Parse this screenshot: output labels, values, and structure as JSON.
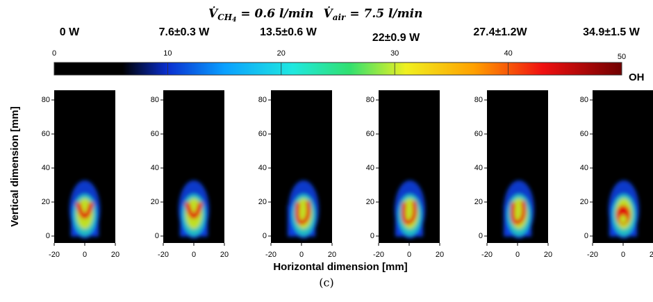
{
  "title": {
    "symbol_1": "V̇",
    "sub_1": "CH",
    "subsub_1": "4",
    "rest_1": "= 0.6 l/min",
    "symbol_2": "V̇",
    "sub_2": "air",
    "rest_2": "= 7.5  l/min"
  },
  "panels": [
    {
      "label": "0 W"
    },
    {
      "label": "7.6±0.3 W"
    },
    {
      "label": "13.5±0.6 W"
    },
    {
      "label": "22±0.9 W"
    },
    {
      "label": "27.4±1.2W"
    },
    {
      "label": "34.9±1.5 W"
    }
  ],
  "colorbar": {
    "ticks": [
      0,
      10,
      20,
      30,
      40,
      50
    ],
    "label": "OH"
  },
  "y_axis": {
    "label": "Vertical dimension [mm]",
    "ticks": [
      0,
      20,
      40,
      60,
      80
    ]
  },
  "x_axis": {
    "label": "Horizontal dimension [mm]",
    "ticks": [
      -20,
      0,
      20
    ]
  },
  "caption": "(c)"
}
